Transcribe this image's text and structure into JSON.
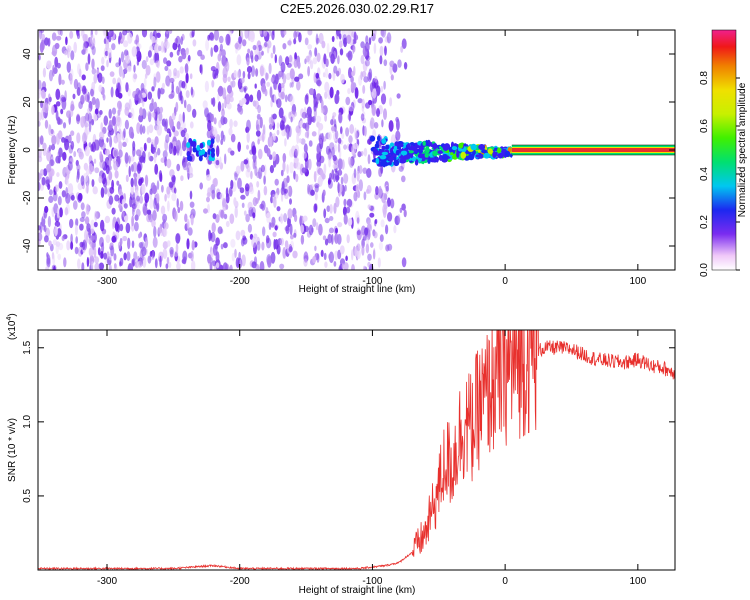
{
  "title": "C2E5.2026.030.02.29.R17",
  "colors": {
    "snr_line": "#e8302d",
    "signal_red": "#e8302d",
    "noise_purple": "#6a1ee8"
  },
  "chart_data": [
    {
      "type": "heatmap",
      "xlabel": "Height of straight line (km)",
      "ylabel": "Frequency (Hz)",
      "xlim": [
        -352,
        128
      ],
      "ylim": [
        -50,
        50
      ],
      "xticks": [
        -300,
        -200,
        -100,
        0,
        100
      ],
      "xtick_labels": [
        "-300",
        "-200",
        "-100",
        "0",
        "100"
      ],
      "yticks": [
        -40,
        -20,
        0,
        20,
        40
      ],
      "ytick_labels": [
        "-40",
        "-20",
        "0",
        "20",
        "40"
      ],
      "colorbar": {
        "label": "Normalized spectral amplitude",
        "range": [
          0.0,
          1.0
        ],
        "ticks": [
          0.0,
          0.2,
          0.4,
          0.6,
          0.8
        ],
        "tick_labels": [
          "0.0",
          "0.2",
          "0.4",
          "0.6",
          "0.8"
        ]
      },
      "features": {
        "noise_region_x": [
          -352,
          -90
        ],
        "gap_x": [
          -235,
          -225
        ],
        "signal_line_frequency": 0,
        "signal_line_start_x": 5
      }
    },
    {
      "type": "line",
      "xlabel": "Height of straight line (km)",
      "ylabel": "SNR (10 * v/v)",
      "multiplier_label": "(x10",
      "multiplier_exp": "4",
      "multiplier_close": ")",
      "xlim": [
        -352,
        128
      ],
      "ylim": [
        0,
        1.62
      ],
      "xticks": [
        -300,
        -200,
        -100,
        0,
        100
      ],
      "xtick_labels": [
        "-300",
        "-200",
        "-100",
        "0",
        "100"
      ],
      "yticks": [
        0.5,
        1.0,
        1.5
      ],
      "ytick_labels": [
        "0.5",
        "1.0",
        "1.5"
      ],
      "series": [
        {
          "name": "SNR",
          "x": [
            -352,
            -300,
            -250,
            -220,
            -200,
            -150,
            -110,
            -100,
            -90,
            -80,
            -70,
            -60,
            -55,
            -50,
            -45,
            -40,
            -35,
            -30,
            -25,
            -20,
            -15,
            -10,
            -5,
            0,
            5,
            10,
            15,
            20,
            25,
            30,
            40,
            50,
            60,
            70,
            80,
            90,
            100,
            110,
            120,
            128
          ],
          "values": [
            0.01,
            0.01,
            0.01,
            0.03,
            0.01,
            0.01,
            0.01,
            0.02,
            0.03,
            0.05,
            0.12,
            0.25,
            0.4,
            0.55,
            0.75,
            0.7,
            0.9,
            1.0,
            0.95,
            1.1,
            1.15,
            1.25,
            1.3,
            1.35,
            1.38,
            1.42,
            1.45,
            1.47,
            1.48,
            1.5,
            1.5,
            1.49,
            1.45,
            1.42,
            1.41,
            1.4,
            1.42,
            1.38,
            1.36,
            1.33
          ]
        }
      ]
    }
  ]
}
